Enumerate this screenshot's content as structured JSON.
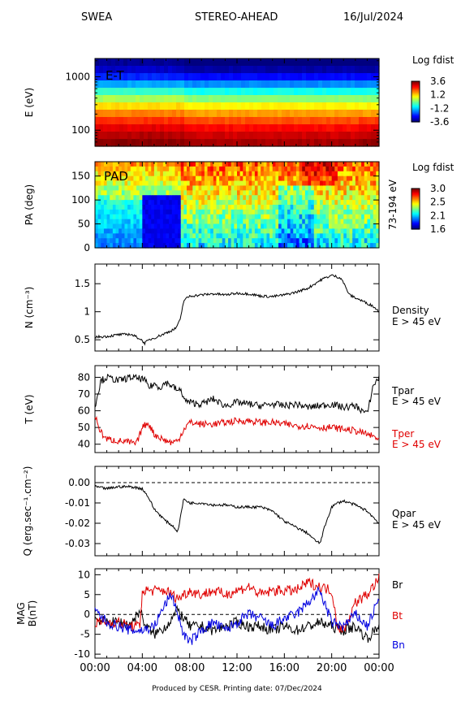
{
  "header": {
    "left": "SWEA",
    "center": "STEREO-AHEAD",
    "right": "16/Jul/2024"
  },
  "footer": "Produced by CESR.   Printing date: 07/Dec/2024",
  "colors": {
    "red": "#e00000",
    "blue": "#0000e0",
    "black": "#000000"
  },
  "chart_data": [
    {
      "type": "heatmap",
      "panel": "energy-time",
      "annotation": "E-T",
      "ylabel": "E (eV)",
      "yscale": "log",
      "ylim": [
        50,
        2200
      ],
      "yticks": [
        100,
        1000
      ],
      "colorbar": {
        "title": "Log fdist",
        "ticks": [
          "3.6",
          "1.2",
          "-1.2",
          "-3.6"
        ],
        "range": [
          -3.6,
          3.6
        ]
      },
      "colorscale_levels": [
        0.0,
        0.05,
        0.14,
        0.27,
        0.4,
        0.52,
        0.64,
        0.73,
        0.81,
        0.88,
        0.93,
        0.97
      ]
    },
    {
      "type": "heatmap",
      "panel": "pitch-angle",
      "annotation": "PAD",
      "ylabel": "PA (deg)",
      "ylim": [
        0,
        180
      ],
      "yticks": [
        0,
        50,
        100,
        150
      ],
      "right_label": "73-194 eV",
      "colorbar": {
        "title": "Log fdist",
        "ticks": [
          "3.0",
          "2.5",
          "2.1",
          "1.6"
        ],
        "range": [
          1.6,
          3.0
        ]
      }
    },
    {
      "type": "line",
      "panel": "density",
      "ylabel": "N (cm⁻³)",
      "ylim": [
        0.3,
        1.85
      ],
      "yticks": [
        0.5,
        1.0,
        1.5
      ],
      "series": [
        {
          "name": "Density",
          "sub": "E > 45 eV",
          "color": "#000000",
          "x": [
            0,
            1,
            2,
            3,
            3.8,
            4.2,
            4.6,
            5.2,
            6,
            6.8,
            7.2,
            7.5,
            8,
            9,
            10,
            11,
            12,
            13,
            14,
            15,
            16,
            17,
            18,
            18.8,
            19.2,
            20,
            20.8,
            21.5,
            22.5,
            23.5,
            24
          ],
          "y": [
            0.55,
            0.56,
            0.59,
            0.6,
            0.52,
            0.44,
            0.5,
            0.55,
            0.62,
            0.7,
            0.85,
            1.2,
            1.28,
            1.3,
            1.32,
            1.3,
            1.33,
            1.32,
            1.28,
            1.27,
            1.3,
            1.35,
            1.42,
            1.53,
            1.58,
            1.65,
            1.6,
            1.3,
            1.2,
            1.1,
            1.0
          ]
        }
      ]
    },
    {
      "type": "line",
      "panel": "temperature",
      "ylabel": "T (eV)",
      "ylim": [
        35,
        87
      ],
      "yticks": [
        40,
        50,
        60,
        70,
        80
      ],
      "series": [
        {
          "name": "Tpar",
          "sub": "E > 45 eV",
          "color": "#000000",
          "x": [
            0,
            0.5,
            1,
            2,
            3,
            4,
            4.2,
            4.6,
            5,
            5.5,
            6,
            6.5,
            7,
            7.3,
            7.6,
            8,
            9,
            10,
            11,
            12,
            13,
            14,
            15,
            16,
            17,
            18,
            19,
            20,
            21,
            22,
            23,
            23.5,
            24
          ],
          "y": [
            63,
            78,
            80,
            78,
            80,
            79,
            78,
            74,
            76,
            74,
            77,
            75,
            72,
            72,
            66,
            65,
            64,
            67,
            63,
            65,
            64,
            63,
            64,
            63,
            64,
            62,
            63,
            64,
            62,
            63,
            58,
            75,
            80
          ]
        },
        {
          "name": "Tper",
          "sub": "E > 45 eV",
          "color": "#e00000",
          "x": [
            0,
            0.5,
            1,
            2,
            3,
            3.5,
            4,
            4.5,
            5,
            5.5,
            6,
            6.5,
            7,
            7.5,
            8,
            9,
            10,
            11,
            12,
            13,
            14,
            15,
            16,
            17,
            18,
            19,
            20,
            21,
            22,
            23,
            24
          ],
          "y": [
            57,
            47,
            43,
            42,
            41,
            40,
            50,
            53,
            46,
            44,
            42,
            41,
            42,
            49,
            53,
            52,
            52,
            53,
            54,
            54,
            53,
            53,
            52,
            51,
            51,
            50,
            50,
            49,
            48,
            46,
            43
          ]
        }
      ]
    },
    {
      "type": "line",
      "panel": "heat-flux",
      "ylabel": "Q (erg.sec⁻¹.cm⁻²)",
      "ylim": [
        -0.036,
        0.008
      ],
      "yticks": [
        0.0,
        -0.01,
        -0.02,
        -0.03
      ],
      "ytick_labels": [
        "0.00",
        "-0.01",
        "-0.02",
        "-0.03"
      ],
      "reference_line": 0,
      "series": [
        {
          "name": "Qpar",
          "sub": "E > 45 eV",
          "color": "#000000",
          "x": [
            0,
            1,
            2,
            3,
            4,
            4.5,
            5,
            5.5,
            6,
            6.5,
            7,
            7.5,
            8,
            9,
            10,
            11,
            12,
            13,
            14,
            15,
            16,
            17,
            18,
            18.5,
            19,
            19.5,
            20,
            20.5,
            21,
            22,
            23,
            24
          ],
          "y": [
            -0.002,
            -0.003,
            -0.002,
            -0.002,
            -0.003,
            -0.007,
            -0.013,
            -0.016,
            -0.019,
            -0.021,
            -0.024,
            -0.008,
            -0.01,
            -0.01,
            -0.011,
            -0.011,
            -0.012,
            -0.012,
            -0.012,
            -0.014,
            -0.019,
            -0.022,
            -0.025,
            -0.028,
            -0.03,
            -0.02,
            -0.012,
            -0.01,
            -0.009,
            -0.011,
            -0.014,
            -0.02
          ]
        }
      ]
    },
    {
      "type": "line",
      "panel": "magnetic-field",
      "ylabel": "MAG B(nT)",
      "ylim": [
        -11,
        11.5
      ],
      "yticks": [
        10,
        5,
        0,
        -5,
        -10
      ],
      "reference_line": 0,
      "xlabel": "",
      "xticks": [
        "00:00",
        "04:00",
        "08:00",
        "12:00",
        "16:00",
        "20:00",
        "00:00"
      ],
      "series": [
        {
          "name": "Br",
          "color": "#000000",
          "x": [
            0,
            1,
            2,
            3,
            3.8,
            4.3,
            5,
            6,
            7,
            7.5,
            8,
            9,
            10,
            11,
            12,
            13,
            14,
            15,
            16,
            17,
            18,
            19,
            20,
            21,
            22,
            23,
            24
          ],
          "y": [
            -1,
            -2,
            -2,
            -2.5,
            1,
            -3,
            -5,
            -3,
            1,
            -1,
            -3,
            -3,
            -4,
            -3,
            -2,
            -3,
            -3,
            -4,
            -3,
            -4,
            -3,
            -2,
            -3,
            -4,
            -3,
            -6,
            -3
          ]
        },
        {
          "name": "Bt",
          "color": "#e00000",
          "x": [
            0,
            1,
            2,
            3,
            3.8,
            4,
            5,
            6,
            7,
            8,
            9,
            10,
            11,
            12,
            13,
            14,
            15,
            16,
            17,
            18,
            19,
            20,
            20.5,
            21,
            22,
            23,
            24
          ],
          "y": [
            -2,
            -2,
            -2,
            -3,
            -3,
            6,
            6,
            6,
            4,
            6,
            5,
            6,
            5,
            6,
            7,
            5,
            6,
            6,
            6,
            8,
            7,
            6,
            -3,
            -4,
            3,
            5,
            9
          ]
        },
        {
          "name": "Bn",
          "color": "#0000e0",
          "x": [
            0,
            1,
            2,
            3,
            4,
            5,
            6,
            6.5,
            7,
            7.5,
            8,
            9,
            10,
            11,
            12,
            13,
            14,
            15,
            16,
            17,
            18,
            19,
            19.5,
            20,
            21,
            22,
            23,
            24
          ],
          "y": [
            1,
            -2,
            -3,
            -4,
            -4,
            -3,
            3,
            5,
            0,
            -5,
            -7,
            -4,
            -2,
            -4,
            -2,
            0,
            -1,
            -3,
            -1,
            0,
            3,
            6,
            2,
            -2,
            -3,
            0,
            -3,
            4
          ]
        }
      ]
    }
  ]
}
